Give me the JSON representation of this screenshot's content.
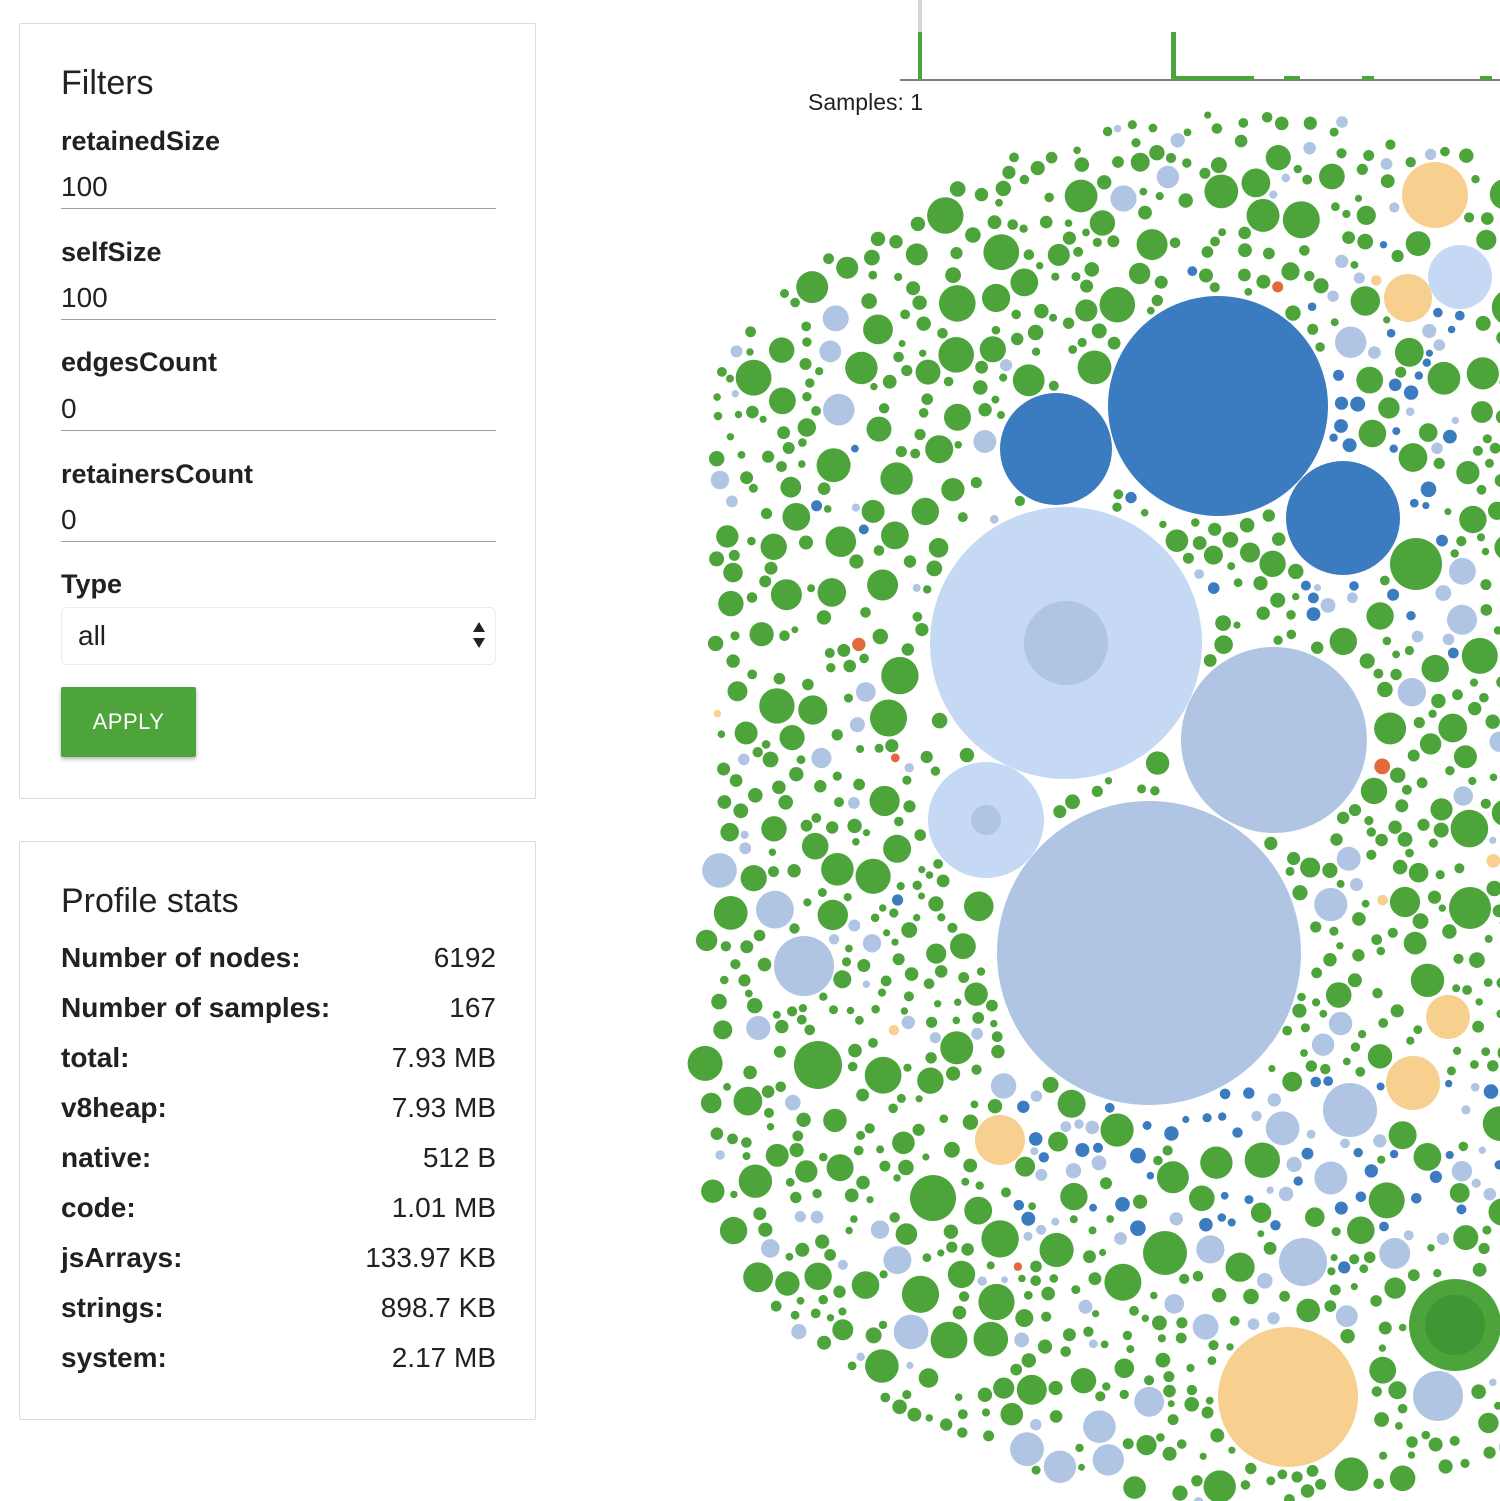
{
  "filters": {
    "title": "Filters",
    "fields": [
      {
        "label": "retainedSize",
        "value": "100"
      },
      {
        "label": "selfSize",
        "value": "100"
      },
      {
        "label": "edgesCount",
        "value": "0"
      },
      {
        "label": "retainersCount",
        "value": "0"
      }
    ],
    "type_label": "Type",
    "type_selected": "all",
    "apply_label": "APPLY"
  },
  "stats": {
    "title": "Profile stats",
    "rows": [
      {
        "label": "Number of nodes:",
        "value": "6192"
      },
      {
        "label": "Number of samples:",
        "value": "167"
      },
      {
        "label": "total:",
        "value": "7.93 MB"
      },
      {
        "label": "v8heap:",
        "value": "7.93 MB"
      },
      {
        "label": "native:",
        "value": "512 B"
      },
      {
        "label": "code:",
        "value": "1.01 MB"
      },
      {
        "label": "jsArrays:",
        "value": "133.97 KB"
      },
      {
        "label": "strings:",
        "value": "898.7 KB"
      },
      {
        "label": "system:",
        "value": "2.17 MB"
      }
    ]
  },
  "timeline": {
    "samples_text": "Samples: 1"
  },
  "colors": {
    "accent_green": "#4ca43b",
    "dark_blue": "#3b7bbf",
    "light_blue": "#c5d9f5",
    "pale_blue": "#b0c4e4",
    "orange": "#f7cf8e",
    "red": "#e06a3a"
  }
}
